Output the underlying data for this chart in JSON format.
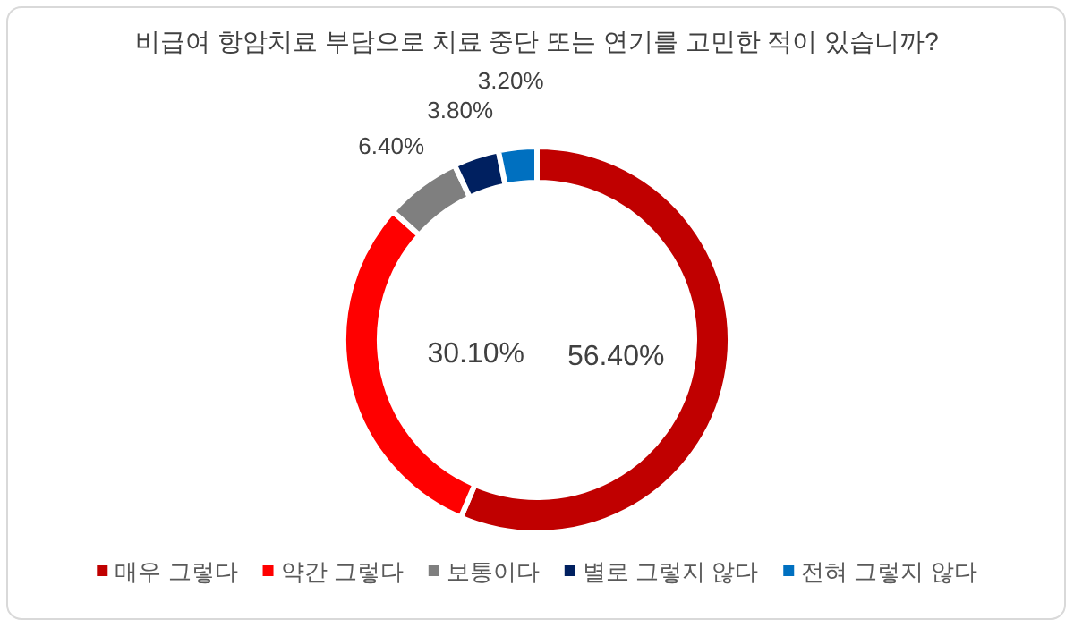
{
  "chart_data": {
    "type": "donut",
    "title": "비급여 항암치료 부담으로 치료 중단 또는 연기를 고민한 적이 있습니까?",
    "categories": [
      "매우 그렇다",
      "약간 그렇다",
      "보통이다",
      "별로 그렇지 않다",
      "전혀 그렇지 않다"
    ],
    "values": [
      56.4,
      30.1,
      6.4,
      3.8,
      3.2
    ],
    "colors": [
      "#c00000",
      "#ff0000",
      "#7f7f7f",
      "#002060",
      "#0070c0"
    ],
    "value_labels": [
      "56.40%",
      "30.10%",
      "6.40%",
      "3.80%",
      "3.20%"
    ],
    "legend": "bottom"
  }
}
